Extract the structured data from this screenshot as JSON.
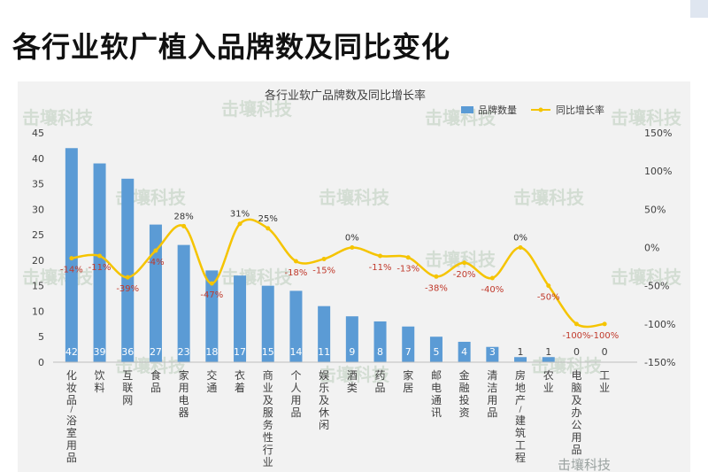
{
  "slide": {
    "title": "各行业软广植入品牌数及同比变化"
  },
  "watermark": {
    "text": "击壤科技",
    "caption": "击壤科技"
  },
  "colors": {
    "bar": "#5b9bd5",
    "line": "#f5c400",
    "negative_label": "#c0392b",
    "positive_label": "#333333",
    "bar_label": "#ffffff"
  },
  "chart_data": {
    "type": "bar",
    "title": "各行业软广品牌数及同比增长率",
    "categories": [
      "化妆品/浴室用品",
      "饮料",
      "互联网",
      "食品",
      "家用电器",
      "交通",
      "衣着",
      "商业及服务性行业",
      "个人用品",
      "娱乐及休闲",
      "酒类",
      "药品",
      "家居",
      "邮电通讯",
      "金融投资",
      "清洁用品",
      "房地产/建筑工程",
      "农业",
      "电脑及办公用品",
      "工业"
    ],
    "series": [
      {
        "name": "品牌数量",
        "axis": "left",
        "values": [
          42,
          39,
          36,
          27,
          23,
          18,
          17,
          15,
          14,
          11,
          9,
          8,
          7,
          5,
          4,
          3,
          1,
          1,
          0,
          0
        ],
        "labels": [
          "42",
          "39",
          "36",
          "27",
          "23",
          "18",
          "17",
          "15",
          "14",
          "11",
          "9",
          "8",
          "7",
          "5",
          "4",
          "3",
          "1",
          "1",
          "0",
          "0"
        ]
      },
      {
        "name": "同比增长率",
        "axis": "right",
        "type": "line",
        "values": [
          -14,
          -11,
          -39,
          -4,
          28,
          -47,
          31,
          25,
          -18,
          -15,
          0,
          -11,
          -13,
          -38,
          -20,
          -40,
          0,
          -50,
          -100,
          -100
        ],
        "labels": [
          "-14%",
          "-11%",
          "-39%",
          "-4%",
          "28%",
          "-47%",
          "31%",
          "25%",
          "-18%",
          "-15%",
          "0%",
          "-11%",
          "-13%",
          "-38%",
          "-20%",
          "-40%",
          "0%",
          "-50%",
          "-100%",
          "-100%"
        ]
      }
    ],
    "ylim": [
      0,
      45
    ],
    "y_ticks": [
      "0",
      "5",
      "10",
      "15",
      "20",
      "25",
      "30",
      "35",
      "40",
      "45"
    ],
    "y2lim": [
      -150,
      150
    ],
    "y2_ticks": [
      "-150%",
      "-100%",
      "-50%",
      "0%",
      "50%",
      "100%",
      "150%"
    ],
    "legend": "top-right",
    "grid": false
  }
}
